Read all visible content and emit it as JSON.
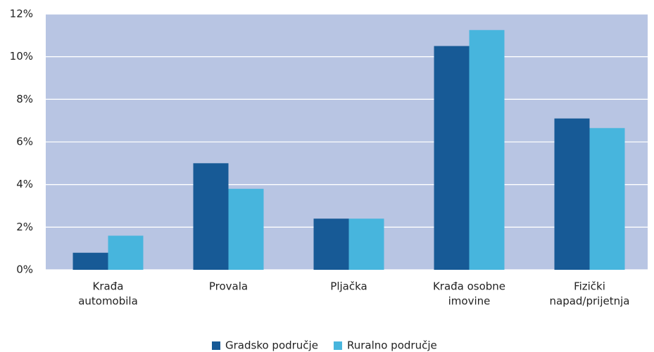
{
  "chart_data": {
    "type": "bar",
    "categories": [
      [
        "Krađa",
        "automobila"
      ],
      [
        "Provala"
      ],
      [
        "Pljačka"
      ],
      [
        "Krađa osobne",
        "imovine"
      ],
      [
        "Fizički",
        "napad/prijetnja"
      ]
    ],
    "series": [
      {
        "name": "Gradsko područje",
        "color": "#175a96",
        "values": [
          0.8,
          5.0,
          2.4,
          10.5,
          7.1
        ]
      },
      {
        "name": "Ruralno područje",
        "color": "#47b5dd",
        "values": [
          1.6,
          3.8,
          2.4,
          11.25,
          6.65
        ]
      }
    ],
    "ylim": [
      0,
      12
    ],
    "yticks": [
      {
        "value": 0,
        "label": "0%"
      },
      {
        "value": 2,
        "label": "2%"
      },
      {
        "value": 4,
        "label": "4%"
      },
      {
        "value": 6,
        "label": "6%"
      },
      {
        "value": 8,
        "label": "8%"
      },
      {
        "value": 10,
        "label": "10%"
      },
      {
        "value": 12,
        "label": "12%"
      }
    ],
    "grid": true,
    "plot_background": "#b8c5e3",
    "legend": "bottom"
  }
}
